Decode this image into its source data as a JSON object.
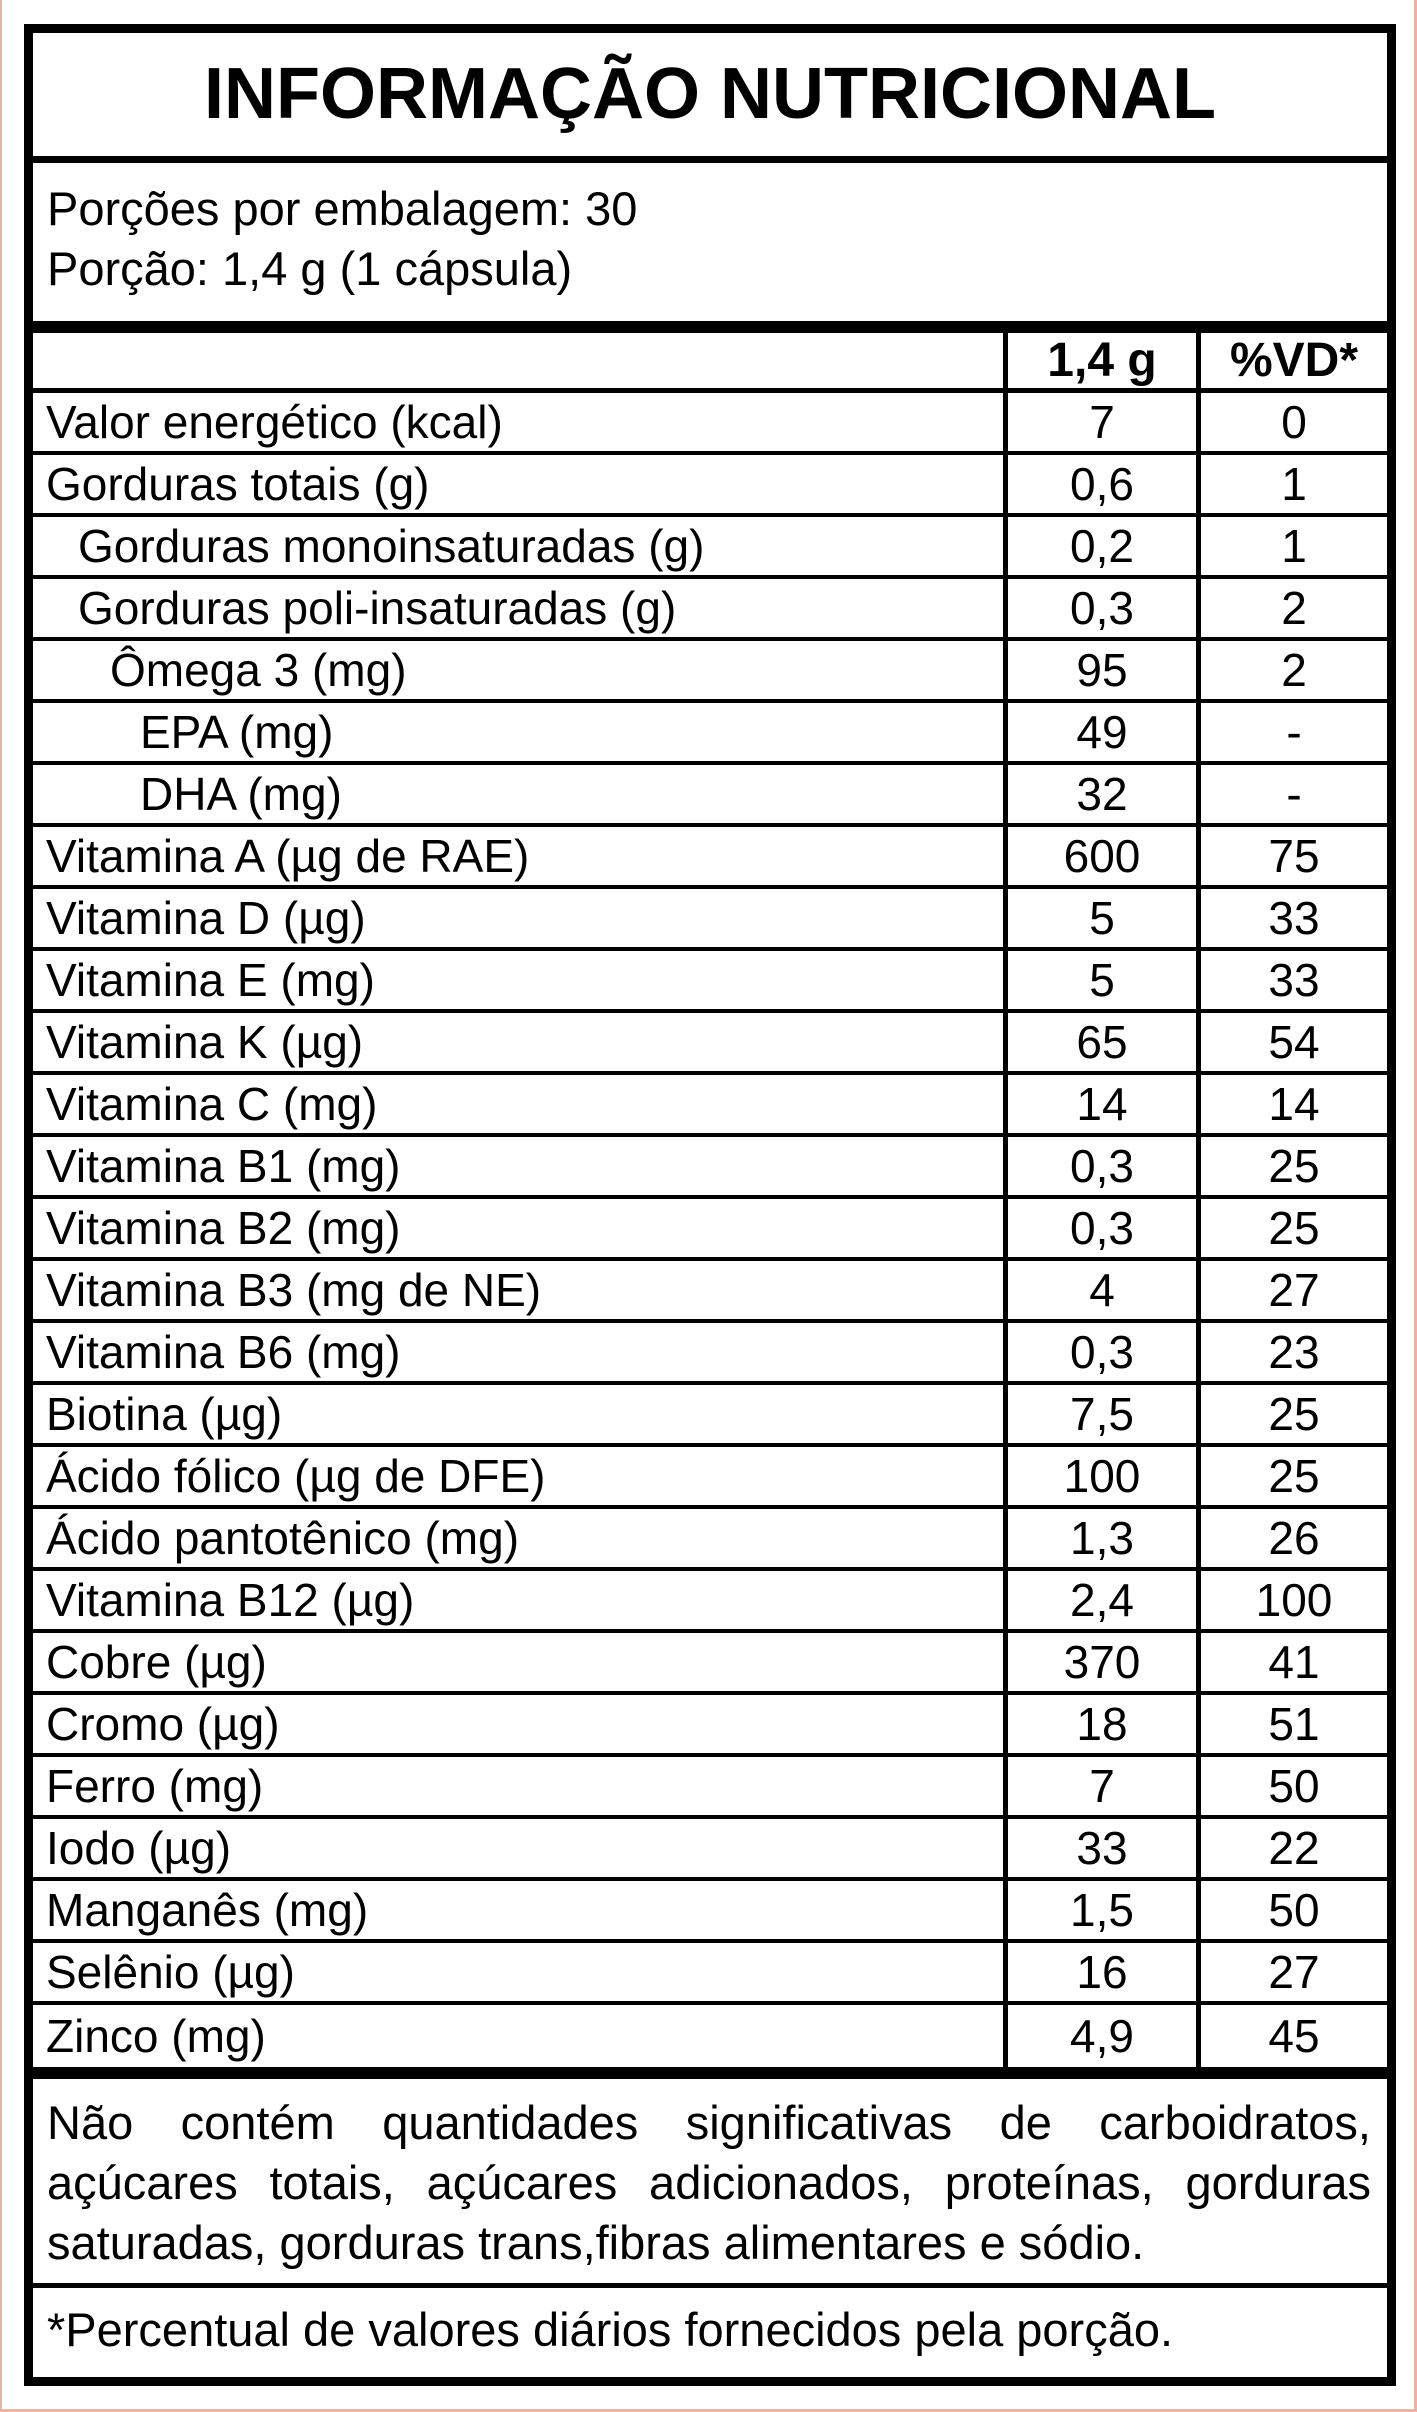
{
  "label": {
    "title": "INFORMAÇÃO NUTRICIONAL",
    "serving_info": {
      "servings_per_package": "Porções por embalagem: 30",
      "serving_size": "Porção: 1,4 g (1 cápsula)"
    },
    "table": {
      "amount_header": "1,4 g",
      "vd_header": "%VD*",
      "rows": [
        {
          "label": "Valor energético (kcal)",
          "amount": "7",
          "vd": "0",
          "indent": 0
        },
        {
          "label": "Gorduras totais (g)",
          "amount": "0,6",
          "vd": "1",
          "indent": 0
        },
        {
          "label": "Gorduras monoinsaturadas (g)",
          "amount": "0,2",
          "vd": "1",
          "indent": 1
        },
        {
          "label": "Gorduras poli-insaturadas (g)",
          "amount": "0,3",
          "vd": "2",
          "indent": 1
        },
        {
          "label": "Ômega 3 (mg)",
          "amount": "95",
          "vd": "2",
          "indent": 2
        },
        {
          "label": "EPA (mg)",
          "amount": "49",
          "vd": "-",
          "indent": 3
        },
        {
          "label": "DHA (mg)",
          "amount": "32",
          "vd": "-",
          "indent": 3
        },
        {
          "label": "Vitamina A (µg de RAE)",
          "amount": "600",
          "vd": "75",
          "indent": 0
        },
        {
          "label": "Vitamina D (µg)",
          "amount": "5",
          "vd": "33",
          "indent": 0
        },
        {
          "label": "Vitamina E (mg)",
          "amount": "5",
          "vd": "33",
          "indent": 0
        },
        {
          "label": "Vitamina K (µg)",
          "amount": "65",
          "vd": "54",
          "indent": 0
        },
        {
          "label": "Vitamina C (mg)",
          "amount": "14",
          "vd": "14",
          "indent": 0
        },
        {
          "label": "Vitamina B1 (mg)",
          "amount": "0,3",
          "vd": "25",
          "indent": 0
        },
        {
          "label": "Vitamina B2 (mg)",
          "amount": "0,3",
          "vd": "25",
          "indent": 0
        },
        {
          "label": "Vitamina B3 (mg de NE)",
          "amount": "4",
          "vd": "27",
          "indent": 0
        },
        {
          "label": "Vitamina B6 (mg)",
          "amount": "0,3",
          "vd": "23",
          "indent": 0
        },
        {
          "label": "Biotina (µg)",
          "amount": "7,5",
          "vd": "25",
          "indent": 0
        },
        {
          "label": "Ácido fólico (µg de DFE)",
          "amount": "100",
          "vd": "25",
          "indent": 0
        },
        {
          "label": "Ácido pantotênico (mg)",
          "amount": "1,3",
          "vd": "26",
          "indent": 0
        },
        {
          "label": "Vitamina B12 (µg)",
          "amount": "2,4",
          "vd": "100",
          "indent": 0
        },
        {
          "label": "Cobre (µg)",
          "amount": "370",
          "vd": "41",
          "indent": 0
        },
        {
          "label": "Cromo (µg)",
          "amount": "18",
          "vd": "51",
          "indent": 0
        },
        {
          "label": "Ferro (mg)",
          "amount": "7",
          "vd": "50",
          "indent": 0
        },
        {
          "label": "Iodo (µg)",
          "amount": "33",
          "vd": "22",
          "indent": 0
        },
        {
          "label": "Manganês (mg)",
          "amount": "1,5",
          "vd": "50",
          "indent": 0
        },
        {
          "label": "Selênio (µg)",
          "amount": "16",
          "vd": "27",
          "indent": 0
        },
        {
          "label": "Zinco (mg)",
          "amount": "4,9",
          "vd": "45",
          "indent": 0
        }
      ]
    },
    "footnotes": {
      "no_significant_amounts": "Não contém quantidades significativas de carboidratos, açúcares totais, açúcares adicionados, proteínas, gorduras saturadas, gorduras trans,fibras alimentares e sódio.",
      "daily_values": "*Percentual de valores diários fornecidos pela porção."
    },
    "colors": {
      "text": "#000000",
      "border": "#000000",
      "background": "#ffffff",
      "edge_line": "#e8b4a4"
    }
  }
}
